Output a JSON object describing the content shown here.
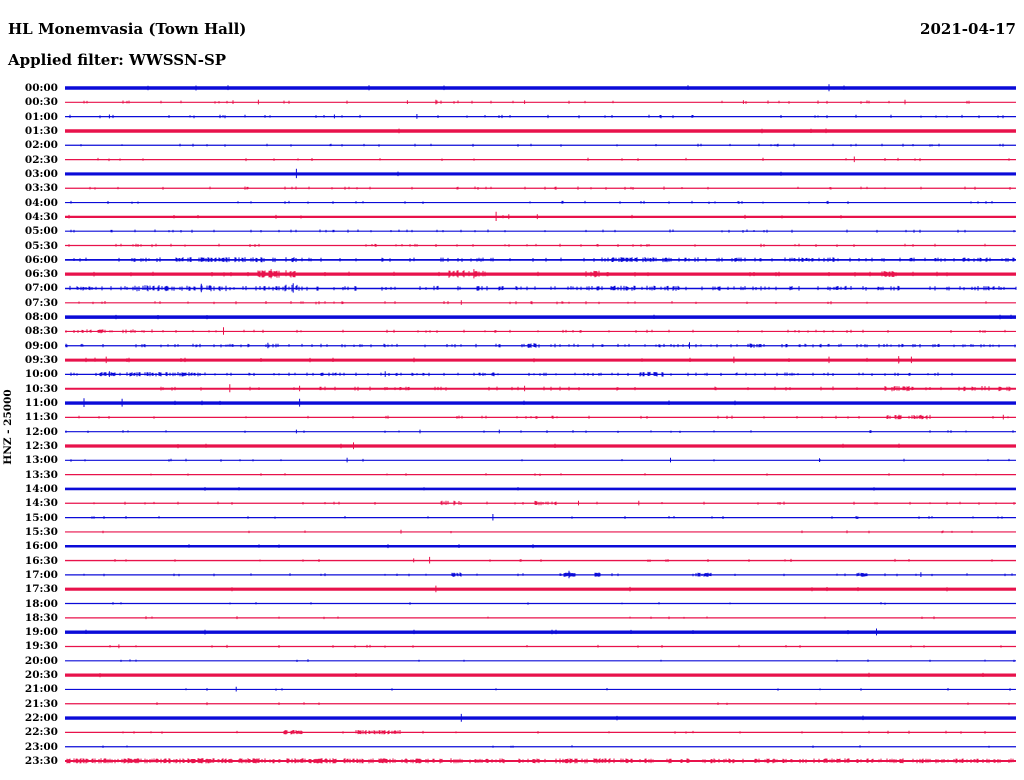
{
  "header": {
    "station_title": "HL Monemvasia (Town Hall)",
    "date": "2021-04-17",
    "filter_label": "Applied filter: WWSSN-SP"
  },
  "axis": {
    "channel_label": "HNZ - 25000"
  },
  "colors": {
    "trace_blue": "#0b0bd8",
    "trace_red": "#e8124b",
    "text": "#000000",
    "background": "#ffffff"
  },
  "chart_data": {
    "type": "line",
    "subtype": "helicorder",
    "title": "HL Monemvasia (Town Hall)",
    "date": "2021-04-17",
    "filter": "WWSSN-SP",
    "channel": "HNZ",
    "gain": 25000,
    "minutes_per_row": 30,
    "row_order": "top-to-bottom",
    "color_rule": "rows starting :00 are blue, rows starting :30 are red",
    "rows": [
      {
        "label": "00:00",
        "color": "blue",
        "thickness": 3.5,
        "noise_density": 0.004,
        "noise_amp": 1.0,
        "bursts": [],
        "spikes": [
          {
            "t": 24.1,
            "a": 2
          }
        ]
      },
      {
        "label": "00:30",
        "color": "red",
        "thickness": 1.2,
        "noise_density": 0.04,
        "noise_amp": 1.3,
        "bursts": [],
        "spikes": [
          {
            "t": 5.3,
            "a": 1.5
          },
          {
            "t": 6.1,
            "a": 2
          },
          {
            "t": 10.8,
            "a": 1.5
          },
          {
            "t": 11.7,
            "a": 2
          },
          {
            "t": 14.5,
            "a": 1.5
          },
          {
            "t": 21.4,
            "a": 1.5
          },
          {
            "t": 26.5,
            "a": 2
          }
        ]
      },
      {
        "label": "01:00",
        "color": "blue",
        "thickness": 1.2,
        "noise_density": 0.045,
        "noise_amp": 1.3,
        "bursts": [],
        "spikes": [
          {
            "t": 1.4,
            "a": 1.5
          },
          {
            "t": 8.5,
            "a": 1.5
          },
          {
            "t": 11.1,
            "a": 2
          }
        ]
      },
      {
        "label": "01:30",
        "color": "red",
        "thickness": 3.5,
        "noise_density": 0.003,
        "noise_amp": 0.8,
        "bursts": [],
        "spikes": []
      },
      {
        "label": "02:00",
        "color": "blue",
        "thickness": 1.2,
        "noise_density": 0.03,
        "noise_amp": 1.0,
        "bursts": [],
        "spikes": []
      },
      {
        "label": "02:30",
        "color": "red",
        "thickness": 1.2,
        "noise_density": 0.035,
        "noise_amp": 1.2,
        "bursts": [],
        "spikes": [
          {
            "t": 24.9,
            "a": 2.5
          }
        ]
      },
      {
        "label": "03:00",
        "color": "blue",
        "thickness": 3.2,
        "noise_density": 0.004,
        "noise_amp": 0.8,
        "bursts": [],
        "spikes": [
          {
            "t": 7.3,
            "a": 3.5
          }
        ]
      },
      {
        "label": "03:30",
        "color": "red",
        "thickness": 1.2,
        "noise_density": 0.045,
        "noise_amp": 1.2,
        "bursts": [],
        "spikes": []
      },
      {
        "label": "04:00",
        "color": "blue",
        "thickness": 1.2,
        "noise_density": 0.04,
        "noise_amp": 1.1,
        "bursts": [],
        "spikes": []
      },
      {
        "label": "04:30",
        "color": "red",
        "thickness": 2.2,
        "noise_density": 0.015,
        "noise_amp": 1.0,
        "bursts": [],
        "spikes": [
          {
            "t": 13.6,
            "a": 4
          },
          {
            "t": 14.0,
            "a": 1.5
          },
          {
            "t": 14.9,
            "a": 1.5
          }
        ]
      },
      {
        "label": "05:00",
        "color": "blue",
        "thickness": 1.2,
        "noise_density": 0.04,
        "noise_amp": 1.1,
        "bursts": [],
        "spikes": []
      },
      {
        "label": "05:30",
        "color": "red",
        "thickness": 1.2,
        "noise_density": 0.05,
        "noise_amp": 1.2,
        "bursts": [
          {
            "t0": 1.7,
            "t1": 3.2,
            "amp": 1.5,
            "density": 0.15
          }
        ],
        "spikes": []
      },
      {
        "label": "06:00",
        "color": "blue",
        "thickness": 1.8,
        "noise_density": 0.12,
        "noise_amp": 1.4,
        "bursts": [
          {
            "t0": 2.7,
            "t1": 7.4,
            "amp": 1.8,
            "density": 0.3
          },
          {
            "t0": 16.9,
            "t1": 20.0,
            "amp": 1.8,
            "density": 0.35
          },
          {
            "t0": 22.6,
            "t1": 24.4,
            "amp": 1.5,
            "density": 0.3
          }
        ],
        "spikes": []
      },
      {
        "label": "06:30",
        "color": "red",
        "thickness": 3.2,
        "noise_density": 0.03,
        "noise_amp": 1.0,
        "bursts": [
          {
            "t0": 6.0,
            "t1": 7.3,
            "amp": 2.5,
            "density": 0.5
          },
          {
            "t0": 12.1,
            "t1": 13.3,
            "amp": 2.5,
            "density": 0.5
          },
          {
            "t0": 16.4,
            "t1": 16.9,
            "amp": 2.0,
            "density": 0.4
          },
          {
            "t0": 25.7,
            "t1": 26.2,
            "amp": 1.5,
            "density": 0.4
          }
        ],
        "spikes": [
          {
            "t": 6.5,
            "a": 3.5
          },
          {
            "t": 12.9,
            "a": 3.5
          }
        ]
      },
      {
        "label": "07:00",
        "color": "blue",
        "thickness": 1.5,
        "noise_density": 0.18,
        "noise_amp": 1.8,
        "bursts": [
          {
            "t0": 2.1,
            "t1": 5.2,
            "amp": 2.5,
            "density": 0.4
          },
          {
            "t0": 6.8,
            "t1": 7.4,
            "amp": 3.0,
            "density": 0.5
          },
          {
            "t0": 16.9,
            "t1": 19.4,
            "amp": 2.0,
            "density": 0.4
          }
        ],
        "spikes": [
          {
            "t": 4.3,
            "a": 4
          },
          {
            "t": 7.2,
            "a": 4.5
          }
        ]
      },
      {
        "label": "07:30",
        "color": "red",
        "thickness": 1.2,
        "noise_density": 0.05,
        "noise_amp": 1.2,
        "bursts": [],
        "spikes": [
          {
            "t": 12.5,
            "a": 2
          }
        ]
      },
      {
        "label": "08:00",
        "color": "blue",
        "thickness": 3.4,
        "noise_density": 0.006,
        "noise_amp": 0.8,
        "bursts": [],
        "spikes": []
      },
      {
        "label": "08:30",
        "color": "red",
        "thickness": 1.2,
        "noise_density": 0.06,
        "noise_amp": 1.2,
        "bursts": [
          {
            "t0": 0.0,
            "t1": 2.8,
            "amp": 1.5,
            "density": 0.25
          }
        ],
        "spikes": [
          {
            "t": 5.0,
            "a": 3.5
          }
        ]
      },
      {
        "label": "09:00",
        "color": "blue",
        "thickness": 1.2,
        "noise_density": 0.14,
        "noise_amp": 1.4,
        "bursts": [
          {
            "t0": 14.5,
            "t1": 15.1,
            "amp": 2.0,
            "density": 0.5
          },
          {
            "t0": 21.5,
            "t1": 21.9,
            "amp": 2.0,
            "density": 0.4
          }
        ],
        "spikes": [
          {
            "t": 6.4,
            "a": 2.5
          },
          {
            "t": 19.7,
            "a": 3
          }
        ]
      },
      {
        "label": "09:30",
        "color": "red",
        "thickness": 3.0,
        "noise_density": 0.02,
        "noise_amp": 1.0,
        "bursts": [],
        "spikes": [
          {
            "t": 1.3,
            "a": 2
          },
          {
            "t": 21.1,
            "a": 2
          },
          {
            "t": 24.1,
            "a": 2
          },
          {
            "t": 26.3,
            "a": 2.5
          },
          {
            "t": 26.7,
            "a": 2
          }
        ]
      },
      {
        "label": "10:00",
        "color": "blue",
        "thickness": 1.3,
        "noise_density": 0.1,
        "noise_amp": 1.3,
        "bursts": [
          {
            "t0": 1.1,
            "t1": 4.3,
            "amp": 1.8,
            "density": 0.45
          },
          {
            "t0": 8.0,
            "t1": 8.5,
            "amp": 1.5,
            "density": 0.4
          },
          {
            "t0": 12.8,
            "t1": 13.7,
            "amp": 1.5,
            "density": 0.35
          },
          {
            "t0": 18.1,
            "t1": 18.9,
            "amp": 2.0,
            "density": 0.5
          }
        ],
        "spikes": [
          {
            "t": 1.4,
            "a": 2.5
          },
          {
            "t": 10.1,
            "a": 2.5
          }
        ]
      },
      {
        "label": "10:30",
        "color": "red",
        "thickness": 2.0,
        "noise_density": 0.05,
        "noise_amp": 1.2,
        "bursts": [
          {
            "t0": 25.7,
            "t1": 26.8,
            "amp": 1.8,
            "density": 0.4
          },
          {
            "t0": 28.2,
            "t1": 29.8,
            "amp": 1.8,
            "density": 0.35
          }
        ],
        "spikes": [
          {
            "t": 5.2,
            "a": 3.5
          },
          {
            "t": 7.4,
            "a": 2
          },
          {
            "t": 14.5,
            "a": 2
          }
        ]
      },
      {
        "label": "11:00",
        "color": "blue",
        "thickness": 3.4,
        "noise_density": 0.008,
        "noise_amp": 1.0,
        "bursts": [],
        "spikes": [
          {
            "t": 0.6,
            "a": 3
          },
          {
            "t": 1.8,
            "a": 2.5
          },
          {
            "t": 7.4,
            "a": 2.5
          }
        ]
      },
      {
        "label": "11:30",
        "color": "red",
        "thickness": 1.2,
        "noise_density": 0.05,
        "noise_amp": 1.2,
        "bursts": [
          {
            "t0": 25.9,
            "t1": 27.3,
            "amp": 2.0,
            "density": 0.5
          }
        ],
        "spikes": [
          {
            "t": 29.6,
            "a": 2
          }
        ]
      },
      {
        "label": "12:00",
        "color": "blue",
        "thickness": 1.2,
        "noise_density": 0.02,
        "noise_amp": 1.0,
        "bursts": [],
        "spikes": [
          {
            "t": 7.3,
            "a": 1.5
          },
          {
            "t": 11.2,
            "a": 1.5
          },
          {
            "t": 13.7,
            "a": 1.5
          }
        ]
      },
      {
        "label": "12:30",
        "color": "red",
        "thickness": 3.2,
        "noise_density": 0.006,
        "noise_amp": 0.8,
        "bursts": [],
        "spikes": [
          {
            "t": 9.1,
            "a": 2
          }
        ]
      },
      {
        "label": "13:00",
        "color": "blue",
        "thickness": 1.2,
        "noise_density": 0.025,
        "noise_amp": 1.0,
        "bursts": [],
        "spikes": [
          {
            "t": 8.9,
            "a": 2
          },
          {
            "t": 19.1,
            "a": 2
          },
          {
            "t": 23.8,
            "a": 1.5
          }
        ]
      },
      {
        "label": "13:30",
        "color": "red",
        "thickness": 1.2,
        "noise_density": 0.02,
        "noise_amp": 1.0,
        "bursts": [],
        "spikes": []
      },
      {
        "label": "14:00",
        "color": "blue",
        "thickness": 2.6,
        "noise_density": 0.005,
        "noise_amp": 0.8,
        "bursts": [],
        "spikes": []
      },
      {
        "label": "14:30",
        "color": "red",
        "thickness": 1.2,
        "noise_density": 0.03,
        "noise_amp": 1.1,
        "bursts": [
          {
            "t0": 11.7,
            "t1": 12.5,
            "amp": 2.0,
            "density": 0.5
          },
          {
            "t0": 14.8,
            "t1": 15.5,
            "amp": 1.8,
            "density": 0.4
          }
        ],
        "spikes": [
          {
            "t": 16.2,
            "a": 2
          },
          {
            "t": 18.1,
            "a": 2
          }
        ]
      },
      {
        "label": "15:00",
        "color": "blue",
        "thickness": 1.2,
        "noise_density": 0.02,
        "noise_amp": 1.0,
        "bursts": [],
        "spikes": [
          {
            "t": 13.5,
            "a": 3
          }
        ]
      },
      {
        "label": "15:30",
        "color": "red",
        "thickness": 1.2,
        "noise_density": 0.02,
        "noise_amp": 0.9,
        "bursts": [],
        "spikes": [
          {
            "t": 10.6,
            "a": 1.5
          }
        ]
      },
      {
        "label": "16:00",
        "color": "blue",
        "thickness": 2.6,
        "noise_density": 0.005,
        "noise_amp": 0.8,
        "bursts": [],
        "spikes": []
      },
      {
        "label": "16:30",
        "color": "red",
        "thickness": 1.4,
        "noise_density": 0.02,
        "noise_amp": 1.0,
        "bursts": [],
        "spikes": [
          {
            "t": 11.0,
            "a": 1.5
          },
          {
            "t": 11.5,
            "a": 3
          }
        ]
      },
      {
        "label": "17:00",
        "color": "blue",
        "thickness": 1.3,
        "noise_density": 0.03,
        "noise_amp": 1.0,
        "bursts": [
          {
            "t0": 12.2,
            "t1": 12.5,
            "amp": 1.8,
            "density": 0.8
          },
          {
            "t0": 15.6,
            "t1": 16.1,
            "amp": 1.8,
            "density": 0.7
          },
          {
            "t0": 16.7,
            "t1": 16.9,
            "amp": 1.8,
            "density": 0.7
          },
          {
            "t0": 19.9,
            "t1": 20.4,
            "amp": 1.6,
            "density": 0.7
          },
          {
            "t0": 24.9,
            "t1": 25.3,
            "amp": 1.6,
            "density": 0.7
          }
        ],
        "spikes": [
          {
            "t": 15.9,
            "a": 3.5
          },
          {
            "t": 27.0,
            "a": 2
          }
        ]
      },
      {
        "label": "17:30",
        "color": "red",
        "thickness": 3.2,
        "noise_density": 0.004,
        "noise_amp": 0.8,
        "bursts": [],
        "spikes": [
          {
            "t": 11.7,
            "a": 2
          }
        ]
      },
      {
        "label": "18:00",
        "color": "blue",
        "thickness": 1.2,
        "noise_density": 0.015,
        "noise_amp": 0.9,
        "bursts": [],
        "spikes": []
      },
      {
        "label": "18:30",
        "color": "red",
        "thickness": 1.2,
        "noise_density": 0.015,
        "noise_amp": 0.9,
        "bursts": [],
        "spikes": []
      },
      {
        "label": "19:00",
        "color": "blue",
        "thickness": 3.4,
        "noise_density": 0.004,
        "noise_amp": 0.8,
        "bursts": [],
        "spikes": [
          {
            "t": 25.6,
            "a": 2
          }
        ]
      },
      {
        "label": "19:30",
        "color": "red",
        "thickness": 1.2,
        "noise_density": 0.02,
        "noise_amp": 1.0,
        "bursts": [],
        "spikes": [
          {
            "t": 1.7,
            "a": 1.5
          }
        ]
      },
      {
        "label": "20:00",
        "color": "blue",
        "thickness": 1.2,
        "noise_density": 0.015,
        "noise_amp": 0.9,
        "bursts": [],
        "spikes": []
      },
      {
        "label": "20:30",
        "color": "red",
        "thickness": 3.3,
        "noise_density": 0.004,
        "noise_amp": 0.8,
        "bursts": [],
        "spikes": []
      },
      {
        "label": "21:00",
        "color": "blue",
        "thickness": 1.2,
        "noise_density": 0.015,
        "noise_amp": 0.9,
        "bursts": [],
        "spikes": [
          {
            "t": 5.4,
            "a": 2
          }
        ]
      },
      {
        "label": "21:30",
        "color": "red",
        "thickness": 1.2,
        "noise_density": 0.012,
        "noise_amp": 0.9,
        "bursts": [],
        "spikes": []
      },
      {
        "label": "22:00",
        "color": "blue",
        "thickness": 3.4,
        "noise_density": 0.004,
        "noise_amp": 0.8,
        "bursts": [],
        "spikes": [
          {
            "t": 12.5,
            "a": 2.5
          }
        ]
      },
      {
        "label": "22:30",
        "color": "red",
        "thickness": 1.2,
        "noise_density": 0.025,
        "noise_amp": 1.0,
        "bursts": [
          {
            "t0": 6.9,
            "t1": 7.5,
            "amp": 1.8,
            "density": 0.6
          },
          {
            "t0": 9.1,
            "t1": 10.6,
            "amp": 1.8,
            "density": 0.55
          }
        ],
        "spikes": []
      },
      {
        "label": "23:00",
        "color": "blue",
        "thickness": 1.2,
        "noise_density": 0.012,
        "noise_amp": 0.9,
        "bursts": [],
        "spikes": []
      },
      {
        "label": "23:30",
        "color": "red",
        "thickness": 2.0,
        "noise_density": 0.3,
        "noise_amp": 1.6,
        "bursts": [
          {
            "t0": 0.0,
            "t1": 12.5,
            "amp": 1.8,
            "density": 0.5
          },
          {
            "t0": 15.9,
            "t1": 17.2,
            "amp": 1.8,
            "density": 0.5
          },
          {
            "t0": 19.4,
            "t1": 30.0,
            "amp": 1.5,
            "density": 0.35
          }
        ],
        "spikes": []
      }
    ]
  }
}
